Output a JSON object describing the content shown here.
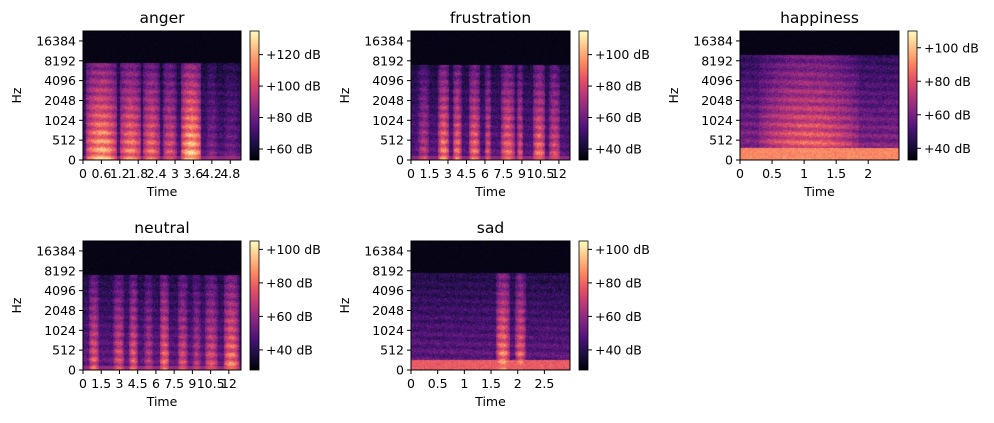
{
  "colors": {
    "colormap": [
      "#000004",
      "#1c1044",
      "#4f127b",
      "#812581",
      "#b5367a",
      "#e55064",
      "#fb8761",
      "#fec287",
      "#fcfdbf"
    ],
    "axis": "#000000",
    "background": "#ffffff"
  },
  "chart_data": [
    {
      "type": "heatmap",
      "title": "anger",
      "xlabel": "Time",
      "ylabel": "Hz",
      "xticks": [
        "0",
        "0.6",
        "1.2",
        "1.8",
        "2.4",
        "3",
        "3.6",
        "4.2",
        "4.8"
      ],
      "xtick_values": [
        0,
        0.6,
        1.2,
        1.8,
        2.4,
        3,
        3.6,
        4.2,
        4.8
      ],
      "xlim": [
        0,
        5.15
      ],
      "yscale": "log2-like (0 at bottom)",
      "yticks": [
        "0",
        "512",
        "1024",
        "2048",
        "4096",
        "8192",
        "16384"
      ],
      "ytick_values": [
        0,
        512,
        1024,
        2048,
        4096,
        8192,
        16384
      ],
      "colorbar_ticks": [
        "+60 dB",
        "+80 dB",
        "+100 dB",
        "+120 dB"
      ],
      "colorbar_values": [
        60,
        80,
        100,
        120
      ],
      "colorbar_range": [
        53,
        135
      ],
      "cutoff_hz": 7500,
      "active_regions": [
        [
          0.1,
          1.1,
          0.95
        ],
        [
          1.2,
          1.9,
          0.85
        ],
        [
          1.95,
          2.5,
          0.8
        ],
        [
          2.6,
          3.05,
          0.7
        ],
        [
          3.2,
          3.85,
          1.0
        ],
        [
          4.0,
          4.4,
          0.45
        ],
        [
          4.55,
          5.1,
          0.4
        ]
      ],
      "base_level": 0.3,
      "low_band_hz": 0,
      "low_band_level": 0.0
    },
    {
      "type": "heatmap",
      "title": "frustration",
      "xlabel": "Time",
      "ylabel": "Hz",
      "xticks": [
        "0",
        "1.5",
        "3",
        "4.5",
        "6",
        "7.5",
        "9",
        "10.5",
        "12"
      ],
      "xtick_values": [
        0,
        1.5,
        3,
        4.5,
        6,
        7.5,
        9,
        10.5,
        12
      ],
      "xlim": [
        0,
        12.9
      ],
      "yscale": "log2-like (0 at bottom)",
      "yticks": [
        "0",
        "512",
        "1024",
        "2048",
        "4096",
        "8192",
        "16384"
      ],
      "ytick_values": [
        0,
        512,
        1024,
        2048,
        4096,
        8192,
        16384
      ],
      "colorbar_ticks": [
        "+40 dB",
        "+60 dB",
        "+80 dB",
        "+100 dB"
      ],
      "colorbar_values": [
        40,
        60,
        80,
        100
      ],
      "colorbar_range": [
        33,
        115
      ],
      "cutoff_hz": 7000,
      "active_regions": [
        [
          0.6,
          1.5,
          0.6
        ],
        [
          2.2,
          3.1,
          0.85
        ],
        [
          3.4,
          4.1,
          0.8
        ],
        [
          4.7,
          5.6,
          0.8
        ],
        [
          6.0,
          6.5,
          0.7
        ],
        [
          7.3,
          8.4,
          0.8
        ],
        [
          8.6,
          9.1,
          0.7
        ],
        [
          9.9,
          10.9,
          0.8
        ],
        [
          11.2,
          12.1,
          0.7
        ]
      ],
      "base_level": 0.32,
      "low_band_hz": 0,
      "low_band_level": 0.0
    },
    {
      "type": "heatmap",
      "title": "happiness",
      "xlabel": "Time",
      "ylabel": "Hz",
      "xticks": [
        "0",
        "0.5",
        "1",
        "1.5",
        "2"
      ],
      "xtick_values": [
        0,
        0.5,
        1,
        1.5,
        2
      ],
      "xlim": [
        0,
        2.48
      ],
      "yscale": "log2-like (0 at bottom)",
      "yticks": [
        "0",
        "512",
        "1024",
        "2048",
        "4096",
        "8192",
        "16384"
      ],
      "ytick_values": [
        0,
        512,
        1024,
        2048,
        4096,
        8192,
        16384
      ],
      "colorbar_ticks": [
        "+40 dB",
        "+60 dB",
        "+80 dB",
        "+100 dB"
      ],
      "colorbar_values": [
        40,
        60,
        80,
        100
      ],
      "colorbar_range": [
        33,
        110
      ],
      "cutoff_hz": 10000,
      "active_regions": [
        [
          0.3,
          1.85,
          0.8
        ]
      ],
      "base_level": 0.45,
      "low_band_hz": 300,
      "low_band_level": 0.75
    },
    {
      "type": "heatmap",
      "title": "neutral",
      "xlabel": "Time",
      "ylabel": "Hz",
      "xticks": [
        "0",
        "1.5",
        "3",
        "4.5",
        "6",
        "7.5",
        "9",
        "10.5",
        "12"
      ],
      "xtick_values": [
        0,
        1.5,
        3,
        4.5,
        6,
        7.5,
        9,
        10.5,
        12
      ],
      "xlim": [
        0,
        13.0
      ],
      "yscale": "log2-like (0 at bottom)",
      "yticks": [
        "0",
        "512",
        "1024",
        "2048",
        "4096",
        "8192",
        "16384"
      ],
      "ytick_values": [
        0,
        512,
        1024,
        2048,
        4096,
        8192,
        16384
      ],
      "colorbar_ticks": [
        "+40 dB",
        "+60 dB",
        "+80 dB",
        "+100 dB"
      ],
      "colorbar_values": [
        40,
        60,
        80,
        100
      ],
      "colorbar_range": [
        28,
        105
      ],
      "cutoff_hz": 7000,
      "active_regions": [
        [
          0.5,
          1.3,
          0.75
        ],
        [
          2.5,
          3.4,
          0.7
        ],
        [
          3.8,
          4.5,
          0.75
        ],
        [
          5.0,
          5.8,
          0.6
        ],
        [
          6.3,
          7.1,
          0.8
        ],
        [
          7.8,
          8.6,
          0.7
        ],
        [
          9.0,
          9.7,
          0.6
        ],
        [
          10.0,
          11.1,
          0.7
        ],
        [
          11.6,
          12.8,
          0.85
        ]
      ],
      "base_level": 0.35,
      "low_band_hz": 0,
      "low_band_level": 0.0
    },
    {
      "type": "heatmap",
      "title": "sad",
      "xlabel": "Time",
      "ylabel": "Hz",
      "xticks": [
        "0",
        "0.5",
        "1",
        "1.5",
        "2",
        "2.5"
      ],
      "xtick_values": [
        0,
        0.5,
        1,
        1.5,
        2,
        2.5
      ],
      "xlim": [
        0,
        2.98
      ],
      "yscale": "log2-like (0 at bottom)",
      "yticks": [
        "0",
        "512",
        "1024",
        "2048",
        "4096",
        "8192",
        "16384"
      ],
      "ytick_values": [
        0,
        512,
        1024,
        2048,
        4096,
        8192,
        16384
      ],
      "colorbar_ticks": [
        "+40 dB",
        "+60 dB",
        "+80 dB",
        "+100 dB"
      ],
      "colorbar_values": [
        40,
        60,
        80,
        100
      ],
      "colorbar_range": [
        28,
        105
      ],
      "cutoff_hz": 7500,
      "active_regions": [
        [
          1.6,
          1.85,
          0.9
        ],
        [
          1.95,
          2.15,
          0.8
        ]
      ],
      "base_level": 0.35,
      "low_band_hz": 250,
      "low_band_level": 0.65
    }
  ]
}
